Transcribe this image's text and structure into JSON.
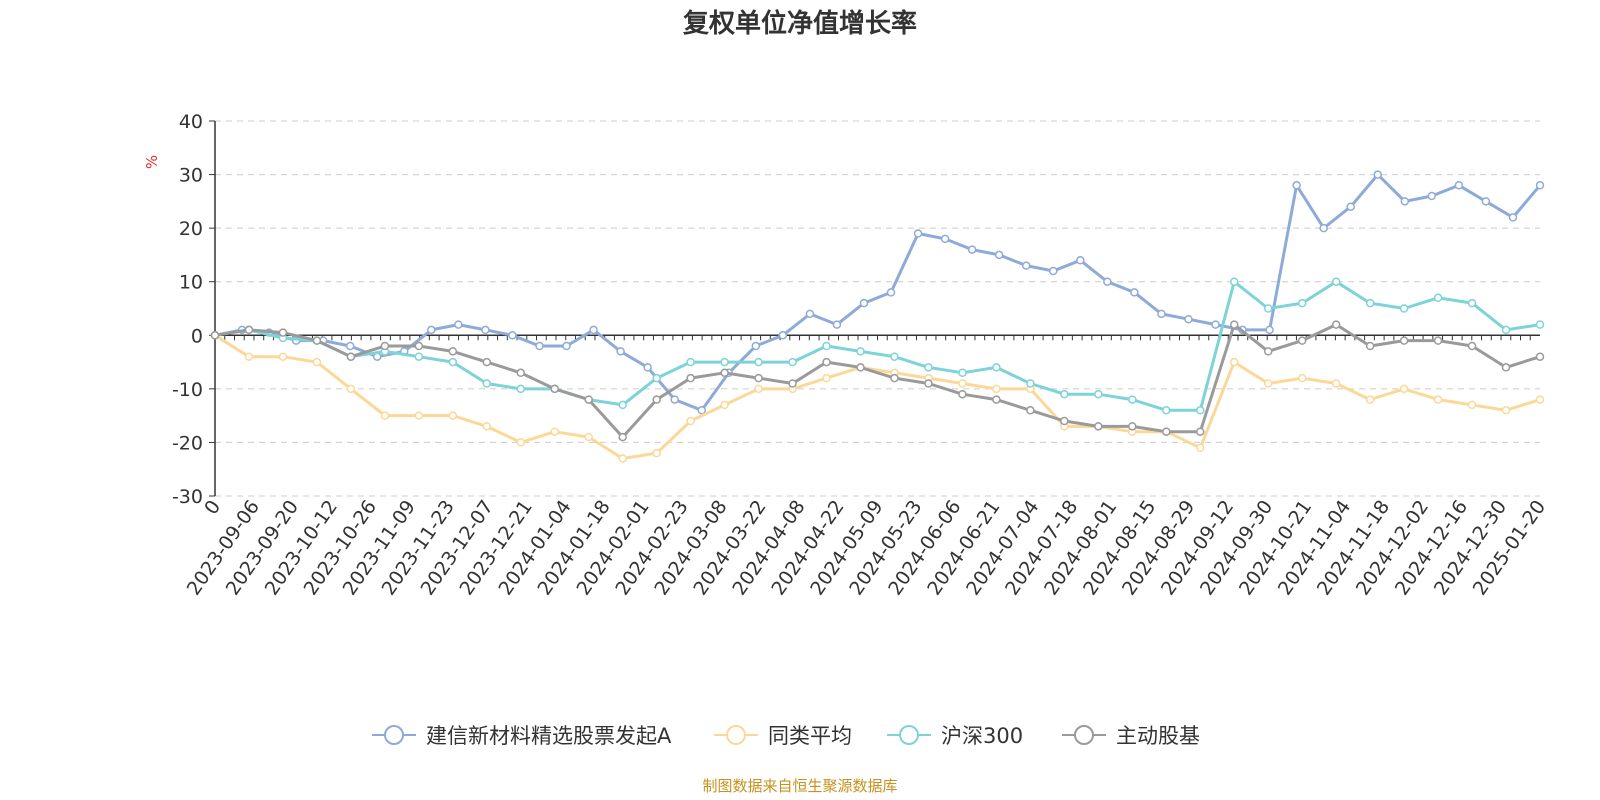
{
  "chart_data": {
    "type": "line",
    "title": "复权单位净值增长率",
    "ylabel": "%",
    "ylim": [
      -30,
      40
    ],
    "yticks": [
      40,
      30,
      20,
      10,
      0,
      -10,
      -20,
      -30
    ],
    "grid": true,
    "legend_position": "bottom",
    "source_note": "制图数据来自恒生聚源数据库",
    "xticks": [
      "0",
      "2023-09-06",
      "2023-09-20",
      "2023-10-12",
      "2023-10-26",
      "2023-11-09",
      "2023-11-23",
      "2023-12-07",
      "2023-12-21",
      "2024-01-04",
      "2024-01-18",
      "2024-02-01",
      "2024-02-23",
      "2024-03-08",
      "2024-03-22",
      "2024-04-08",
      "2024-04-22",
      "2024-05-09",
      "2024-05-23",
      "2024-06-06",
      "2024-06-21",
      "2024-07-04",
      "2024-07-18",
      "2024-08-01",
      "2024-08-15",
      "2024-08-29",
      "2024-09-12",
      "2024-09-30",
      "2024-10-21",
      "2024-11-04",
      "2024-11-18",
      "2024-12-02",
      "2024-12-16",
      "2024-12-30",
      "2025-01-20"
    ],
    "series": [
      {
        "name": "建信新材料精选股票发起A",
        "color": "#8eaad8",
        "values": [
          0,
          1,
          0.5,
          -1,
          -1,
          -2,
          -4,
          -3,
          1,
          2,
          1,
          0,
          -2,
          -2,
          1,
          -3,
          -6,
          -12,
          -14,
          -7,
          -2,
          0,
          4,
          2,
          6,
          8,
          19,
          18,
          16,
          15,
          13,
          12,
          14,
          10,
          8,
          4,
          3,
          2,
          1,
          1,
          28,
          20,
          24,
          30,
          25,
          26,
          28,
          25,
          22,
          28
        ]
      },
      {
        "name": "同类平均",
        "color": "#fcd898",
        "values": [
          0,
          -4,
          -4,
          -5,
          -10,
          -15,
          -15,
          -15,
          -17,
          -20,
          -18,
          -19,
          -23,
          -22,
          -16,
          -13,
          -10,
          -10,
          -8,
          -6,
          -7,
          -8,
          -9,
          -10,
          -10,
          -17,
          -17,
          -18,
          -18,
          -21,
          -5,
          -9,
          -8,
          -9,
          -12,
          -10,
          -12,
          -13,
          -14,
          -12
        ]
      },
      {
        "name": "沪深300",
        "color": "#7dd3d7",
        "values": [
          0,
          1,
          -0.5,
          -1,
          -4,
          -3,
          -4,
          -5,
          -9,
          -10,
          -10,
          -12,
          -13,
          -8,
          -5,
          -5,
          -5,
          -5,
          -2,
          -3,
          -4,
          -6,
          -7,
          -6,
          -9,
          -11,
          -11,
          -12,
          -14,
          -14,
          10,
          5,
          6,
          10,
          6,
          5,
          7,
          6,
          1,
          2
        ]
      },
      {
        "name": "主动股基",
        "color": "#9a9a9a",
        "values": [
          0,
          1,
          0.5,
          -1,
          -4,
          -2,
          -2,
          -3,
          -5,
          -7,
          -10,
          -12,
          -19,
          -12,
          -8,
          -7,
          -8,
          -9,
          -5,
          -6,
          -8,
          -9,
          -11,
          -12,
          -14,
          -16,
          -17,
          -17,
          -18,
          -18,
          2,
          -3,
          -1,
          2,
          -2,
          -1,
          -1,
          -2,
          -6,
          -4
        ]
      }
    ]
  }
}
